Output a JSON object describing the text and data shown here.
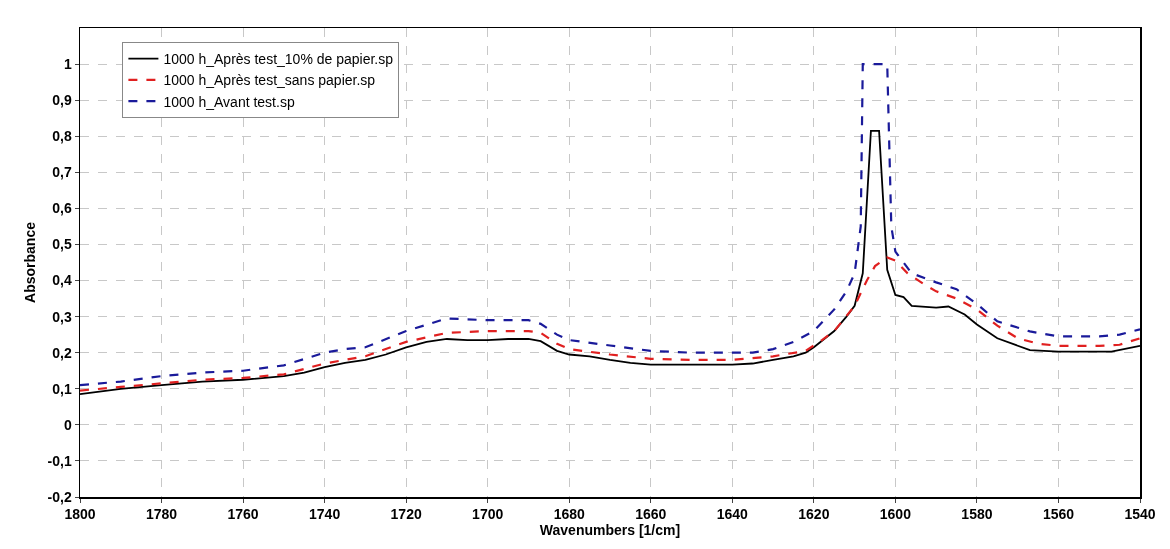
{
  "chart_data": {
    "type": "line",
    "xlabel": "Wavenumbers [1/cm]",
    "ylabel": "Absorbance",
    "xlim": [
      1800,
      1540
    ],
    "xticks": [
      1800,
      1780,
      1760,
      1740,
      1720,
      1700,
      1680,
      1660,
      1640,
      1620,
      1600,
      1580,
      1560,
      1540
    ],
    "ylim": [
      -0.2,
      1.1
    ],
    "yticks": [
      {
        "value": -0.2,
        "label": "-0,2"
      },
      {
        "value": -0.1,
        "label": "-0,1"
      },
      0,
      {
        "value": 0.1,
        "label": "0,1"
      },
      {
        "value": 0.2,
        "label": "0,2"
      },
      {
        "value": 0.3,
        "label": "0,3"
      },
      {
        "value": 0.4,
        "label": "0,4"
      },
      {
        "value": 0.5,
        "label": "0,5"
      },
      {
        "value": 0.6,
        "label": "0,6"
      },
      {
        "value": 0.7,
        "label": "0,7"
      },
      {
        "value": 0.8,
        "label": "0,8"
      },
      {
        "value": 0.9,
        "label": "0,9"
      },
      1
    ],
    "grid": true,
    "legend": "top left",
    "marker": "none",
    "series": [
      {
        "name": "1000 h_Après test_10% de papier.sp",
        "color": "#000000",
        "line_style": "solid",
        "x": [
          1800,
          1790,
          1780,
          1770,
          1760,
          1750,
          1745,
          1740,
          1735,
          1730,
          1725,
          1720,
          1715,
          1710,
          1705,
          1700,
          1695,
          1690,
          1687,
          1683,
          1680,
          1675,
          1670,
          1665,
          1660,
          1650,
          1640,
          1635,
          1630,
          1625,
          1622,
          1620,
          1615,
          1612,
          1610,
          1608,
          1606,
          1604,
          1602,
          1600,
          1598,
          1596,
          1590,
          1587,
          1583,
          1580,
          1575,
          1567,
          1560,
          1547,
          1540
        ],
        "values": [
          0.085,
          0.1,
          0.11,
          0.12,
          0.125,
          0.135,
          0.145,
          0.16,
          0.172,
          0.18,
          0.195,
          0.215,
          0.23,
          0.238,
          0.235,
          0.235,
          0.238,
          0.238,
          0.232,
          0.205,
          0.195,
          0.19,
          0.18,
          0.172,
          0.167,
          0.167,
          0.167,
          0.17,
          0.18,
          0.19,
          0.2,
          0.215,
          0.26,
          0.3,
          0.33,
          0.42,
          0.815,
          0.815,
          0.43,
          0.36,
          0.354,
          0.33,
          0.325,
          0.328,
          0.306,
          0.278,
          0.24,
          0.207,
          0.203,
          0.203,
          0.219
        ]
      },
      {
        "name": "1000 h_Après test_sans papier.sp",
        "color": "#e02020",
        "line_style": "dashed",
        "x": [
          1800,
          1790,
          1780,
          1770,
          1760,
          1750,
          1740,
          1730,
          1720,
          1710,
          1700,
          1690,
          1687,
          1683,
          1680,
          1670,
          1660,
          1650,
          1640,
          1630,
          1622,
          1618,
          1615,
          1610,
          1607,
          1605,
          1602,
          1600,
          1597,
          1593,
          1590,
          1585,
          1580,
          1575,
          1570,
          1565,
          1560,
          1550,
          1545,
          1540
        ],
        "values": [
          0.095,
          0.105,
          0.115,
          0.125,
          0.13,
          0.14,
          0.17,
          0.19,
          0.23,
          0.255,
          0.26,
          0.26,
          0.255,
          0.225,
          0.21,
          0.195,
          0.183,
          0.18,
          0.18,
          0.19,
          0.205,
          0.235,
          0.26,
          0.33,
          0.4,
          0.44,
          0.464,
          0.455,
          0.42,
          0.39,
          0.37,
          0.35,
          0.32,
          0.275,
          0.24,
          0.225,
          0.219,
          0.219,
          0.222,
          0.24
        ]
      },
      {
        "name": "1000 h_Avant test.sp",
        "color": "#1a1a9a",
        "line_style": "dashed",
        "x": [
          1800,
          1790,
          1780,
          1770,
          1760,
          1750,
          1740,
          1735,
          1730,
          1720,
          1710,
          1700,
          1690,
          1687,
          1683,
          1680,
          1670,
          1660,
          1650,
          1640,
          1635,
          1630,
          1625,
          1620,
          1615,
          1612,
          1610,
          1608.5,
          1608,
          1602,
          1601,
          1600,
          1596,
          1590,
          1585,
          1580,
          1575,
          1567,
          1560,
          1550,
          1545,
          1540
        ],
        "values": [
          0.11,
          0.12,
          0.135,
          0.145,
          0.15,
          0.165,
          0.2,
          0.21,
          0.215,
          0.26,
          0.295,
          0.29,
          0.29,
          0.28,
          0.25,
          0.235,
          0.22,
          0.205,
          0.2,
          0.2,
          0.2,
          0.21,
          0.23,
          0.26,
          0.32,
          0.37,
          0.42,
          0.55,
          1,
          1,
          0.55,
          0.48,
          0.42,
          0.395,
          0.376,
          0.335,
          0.287,
          0.259,
          0.245,
          0.245,
          0.25,
          0.265
        ]
      }
    ]
  }
}
